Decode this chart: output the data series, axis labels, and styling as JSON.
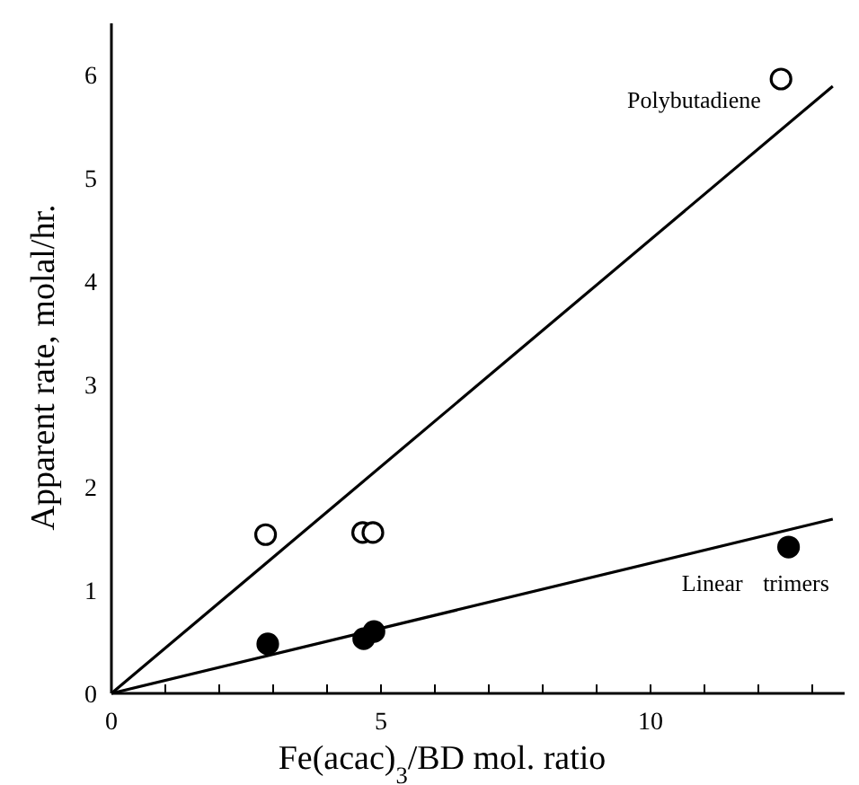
{
  "chart_data": {
    "type": "scatter",
    "xlabel": "Fe(acac)$_{3}$/BD mol. ratio",
    "ylabel": "Apparent rate, molal/hr.",
    "xlim": [
      0,
      13.6
    ],
    "ylim": [
      0,
      6.5
    ],
    "xticks": [
      0,
      {
        "value": 1,
        "label": null
      },
      {
        "value": 2,
        "label": null
      },
      {
        "value": 3,
        "label": null
      },
      {
        "value": 4,
        "label": null
      },
      5,
      {
        "value": 6,
        "label": null
      },
      {
        "value": 7,
        "label": null
      },
      {
        "value": 8,
        "label": null
      },
      {
        "value": 9,
        "label": null
      },
      10,
      {
        "value": 11,
        "label": null
      },
      {
        "value": 12,
        "label": null
      },
      {
        "value": 13,
        "label": null
      }
    ],
    "yticks": [
      0,
      1,
      2,
      3,
      4,
      5,
      6
    ],
    "series": [
      {
        "marker": "circle",
        "color": "#ffffff",
        "x": [
          2.86,
          4.66,
          4.85,
          12.42
        ],
        "values": [
          1.54,
          1.56,
          1.56,
          5.96
        ]
      },
      {
        "marker": "circle",
        "color": "#000000",
        "x": [
          2.9,
          4.68,
          4.87,
          12.56
        ],
        "values": [
          0.48,
          0.53,
          0.6,
          1.42
        ]
      },
      {
        "type": "line",
        "name": "Polybutadiene",
        "color": "#000000",
        "x": [
          0,
          13.38
        ],
        "values": [
          0,
          5.89
        ]
      },
      {
        "type": "line",
        "name": "Linear trimers",
        "color": "#000000",
        "x": [
          0,
          13.38
        ],
        "values": [
          0,
          1.69
        ]
      }
    ]
  }
}
